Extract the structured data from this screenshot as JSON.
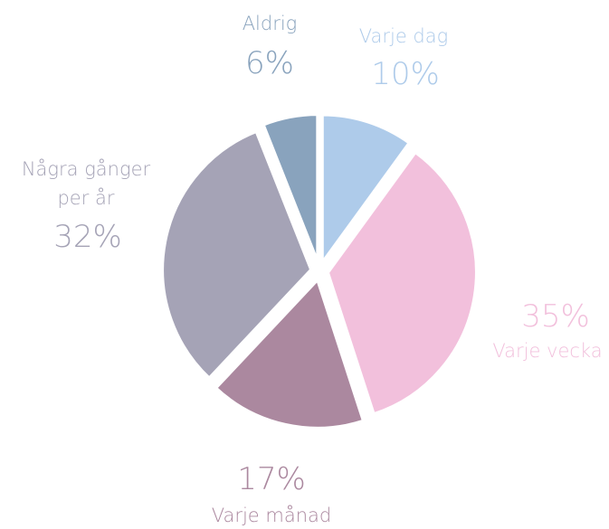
{
  "chart_data": {
    "type": "pie",
    "categories": [
      "Varje dag",
      "Varje vecka",
      "Varje månad",
      "Några gånger per år",
      "Aldrig"
    ],
    "values": [
      10,
      35,
      17,
      32,
      6
    ],
    "value_labels": [
      "10%",
      "35%",
      "17%",
      "32%",
      "6%"
    ],
    "colors": [
      "#aecbea",
      "#f2c0dc",
      "#ab889f",
      "#a5a3b6",
      "#89a3bd"
    ]
  }
}
